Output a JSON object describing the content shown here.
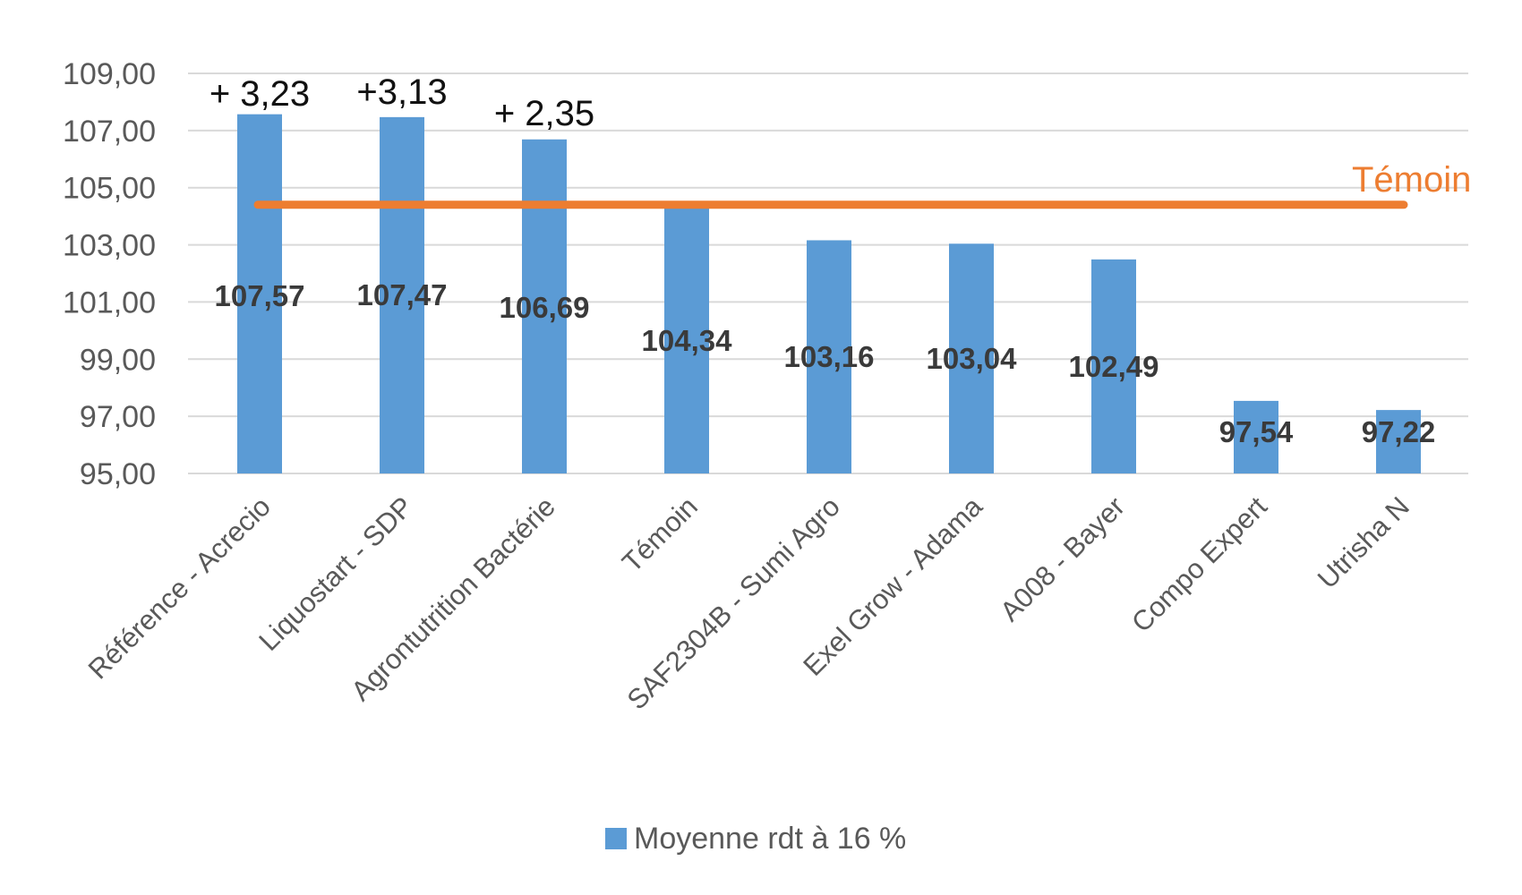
{
  "chart_data": {
    "type": "bar",
    "categories": [
      "Référence - Acrecio",
      "Liquostart - SDP",
      "Agrontutrition Bactérie",
      "Témoin",
      "SAF2304B - Sumi Agro",
      "Exel Grow - Adama",
      "A008 - Bayer",
      "Compo Expert",
      "Utrisha N"
    ],
    "series": [
      {
        "name": "Moyenne rdt à 16 %",
        "values": [
          107.57,
          107.47,
          106.69,
          104.34,
          103.16,
          103.04,
          102.49,
          97.54,
          97.22
        ],
        "value_labels": [
          "107,57",
          "107,47",
          "106,69",
          "104,34",
          "103,16",
          "103,04",
          "102,49",
          "97,54",
          "97,22"
        ]
      }
    ],
    "ylim": [
      95,
      109
    ],
    "y_ticks": [
      95,
      97,
      99,
      101,
      103,
      105,
      107,
      109
    ],
    "y_tick_labels": [
      "95,00",
      "97,00",
      "99,00",
      "101,00",
      "103,00",
      "105,00",
      "107,00",
      "109,00"
    ],
    "reference_line": {
      "label": "Témoin",
      "value": 104.34
    },
    "annotations": [
      {
        "category_index": 0,
        "text": "+ 3,23"
      },
      {
        "category_index": 1,
        "text": "+3,13"
      },
      {
        "category_index": 2,
        "text": "+ 2,35"
      }
    ],
    "grid": true,
    "legend": {
      "position": "bottom",
      "label": "Moyenne rdt à 16 %"
    },
    "colors": {
      "bar": "#5b9bd5",
      "reference_line": "#ed7d31",
      "grid": "#d9d9d9"
    }
  }
}
